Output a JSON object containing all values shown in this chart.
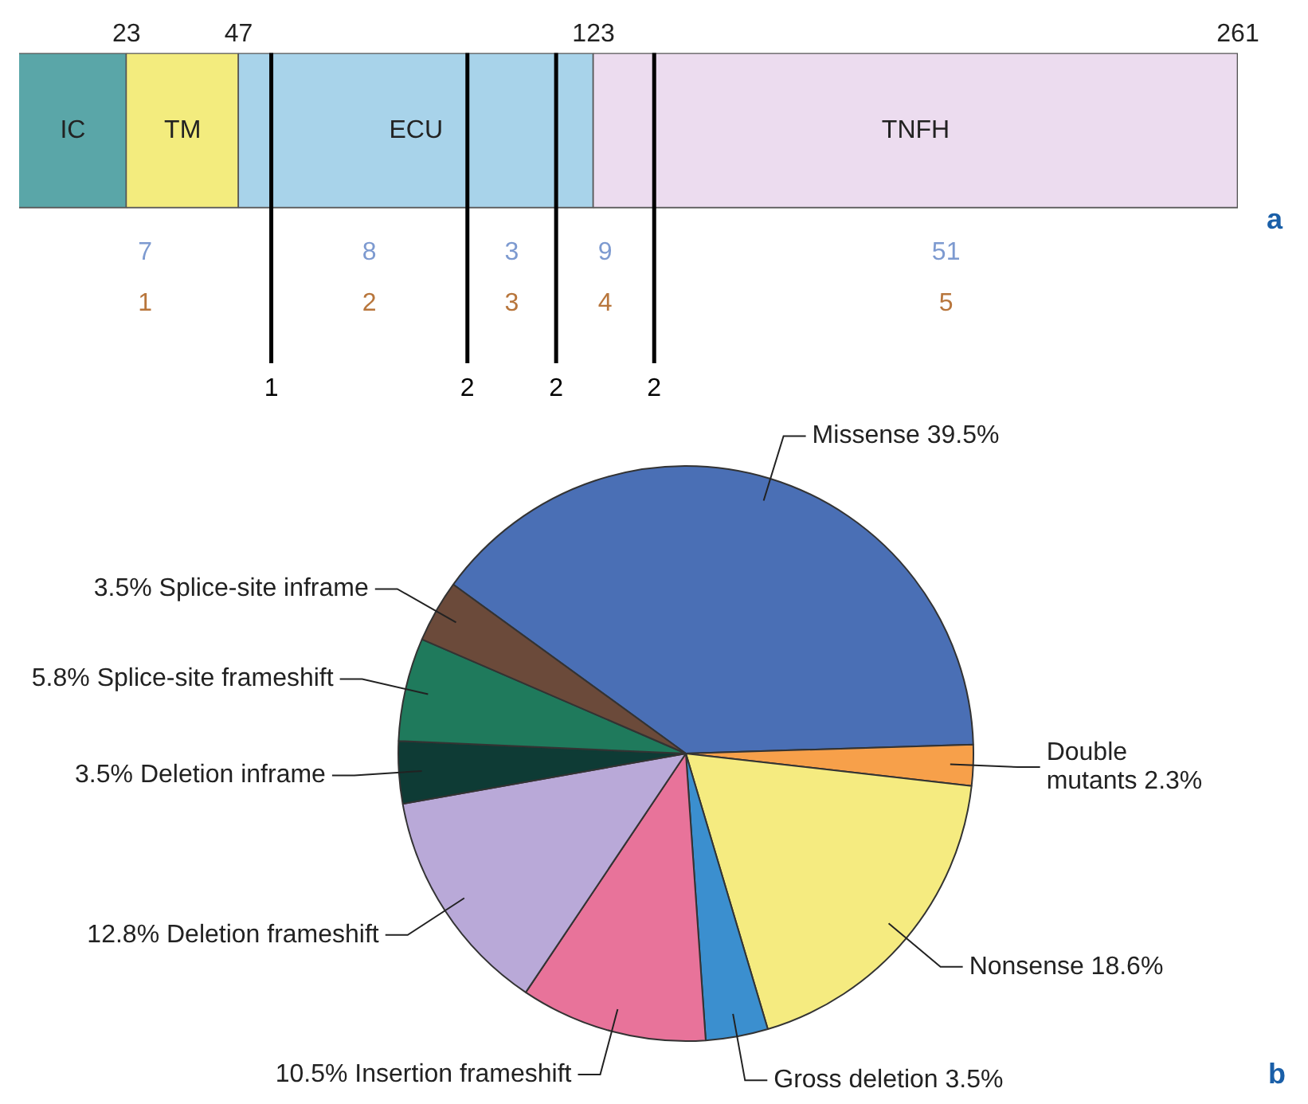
{
  "chart_data": [
    {
      "type": "bar",
      "orientation": "horizontal",
      "stacked": true,
      "title": "a",
      "categories": [
        null
      ],
      "series": [
        {
          "name": "IC",
          "color": "#5aa6a8",
          "values": [
            23
          ]
        },
        {
          "name": "TM",
          "color": "#f3ec7e",
          "values": [
            24
          ]
        },
        {
          "name": "ECU",
          "color": "#a8d3ea",
          "values": [
            76
          ]
        },
        {
          "name": "TNFH",
          "color": "#ecdcef",
          "values": [
            138
          ]
        }
      ],
      "xlim": [
        0,
        261
      ],
      "xticks": [
        23,
        47,
        123,
        261
      ],
      "tick_labels": "x",
      "grid": false,
      "legend": false,
      "ref_lines": [
        {
          "axis": "x",
          "value": 54
        },
        {
          "axis": "x",
          "value": 96
        },
        {
          "axis": "x",
          "value": 115
        },
        {
          "axis": "x",
          "value": 136
        }
      ],
      "annotations": [
        "7",
        "8",
        "3",
        "9",
        "51",
        "1",
        "2",
        "3",
        "4",
        "5",
        "1",
        "2",
        "2",
        "2"
      ]
    },
    {
      "type": "pie",
      "title": "b",
      "legend": false,
      "categories": [
        "Missense",
        "Double mutants",
        "Nonsense",
        "Gross deletion",
        "Insertion frameshift",
        "Deletion frameshift",
        "Deletion inframe",
        "Splice-site frameshift",
        "Splice-site inframe"
      ],
      "values": [
        39.5,
        2.3,
        18.6,
        3.5,
        10.5,
        12.8,
        3.5,
        5.8,
        3.5
      ],
      "value_labels": [
        "39.5%",
        "2.3%",
        "18.6%",
        "3.5%",
        "10.5%",
        "12.8%",
        "3.5%",
        "5.8%",
        "3.5%"
      ],
      "colors": [
        "#4a6fb5",
        "#f7a04a",
        "#f5eb80",
        "#3b8fcf",
        "#e8739a",
        "#b9a9d8",
        "#0e3b35",
        "#1f7a5c",
        "#6b4a3a"
      ]
    }
  ]
}
